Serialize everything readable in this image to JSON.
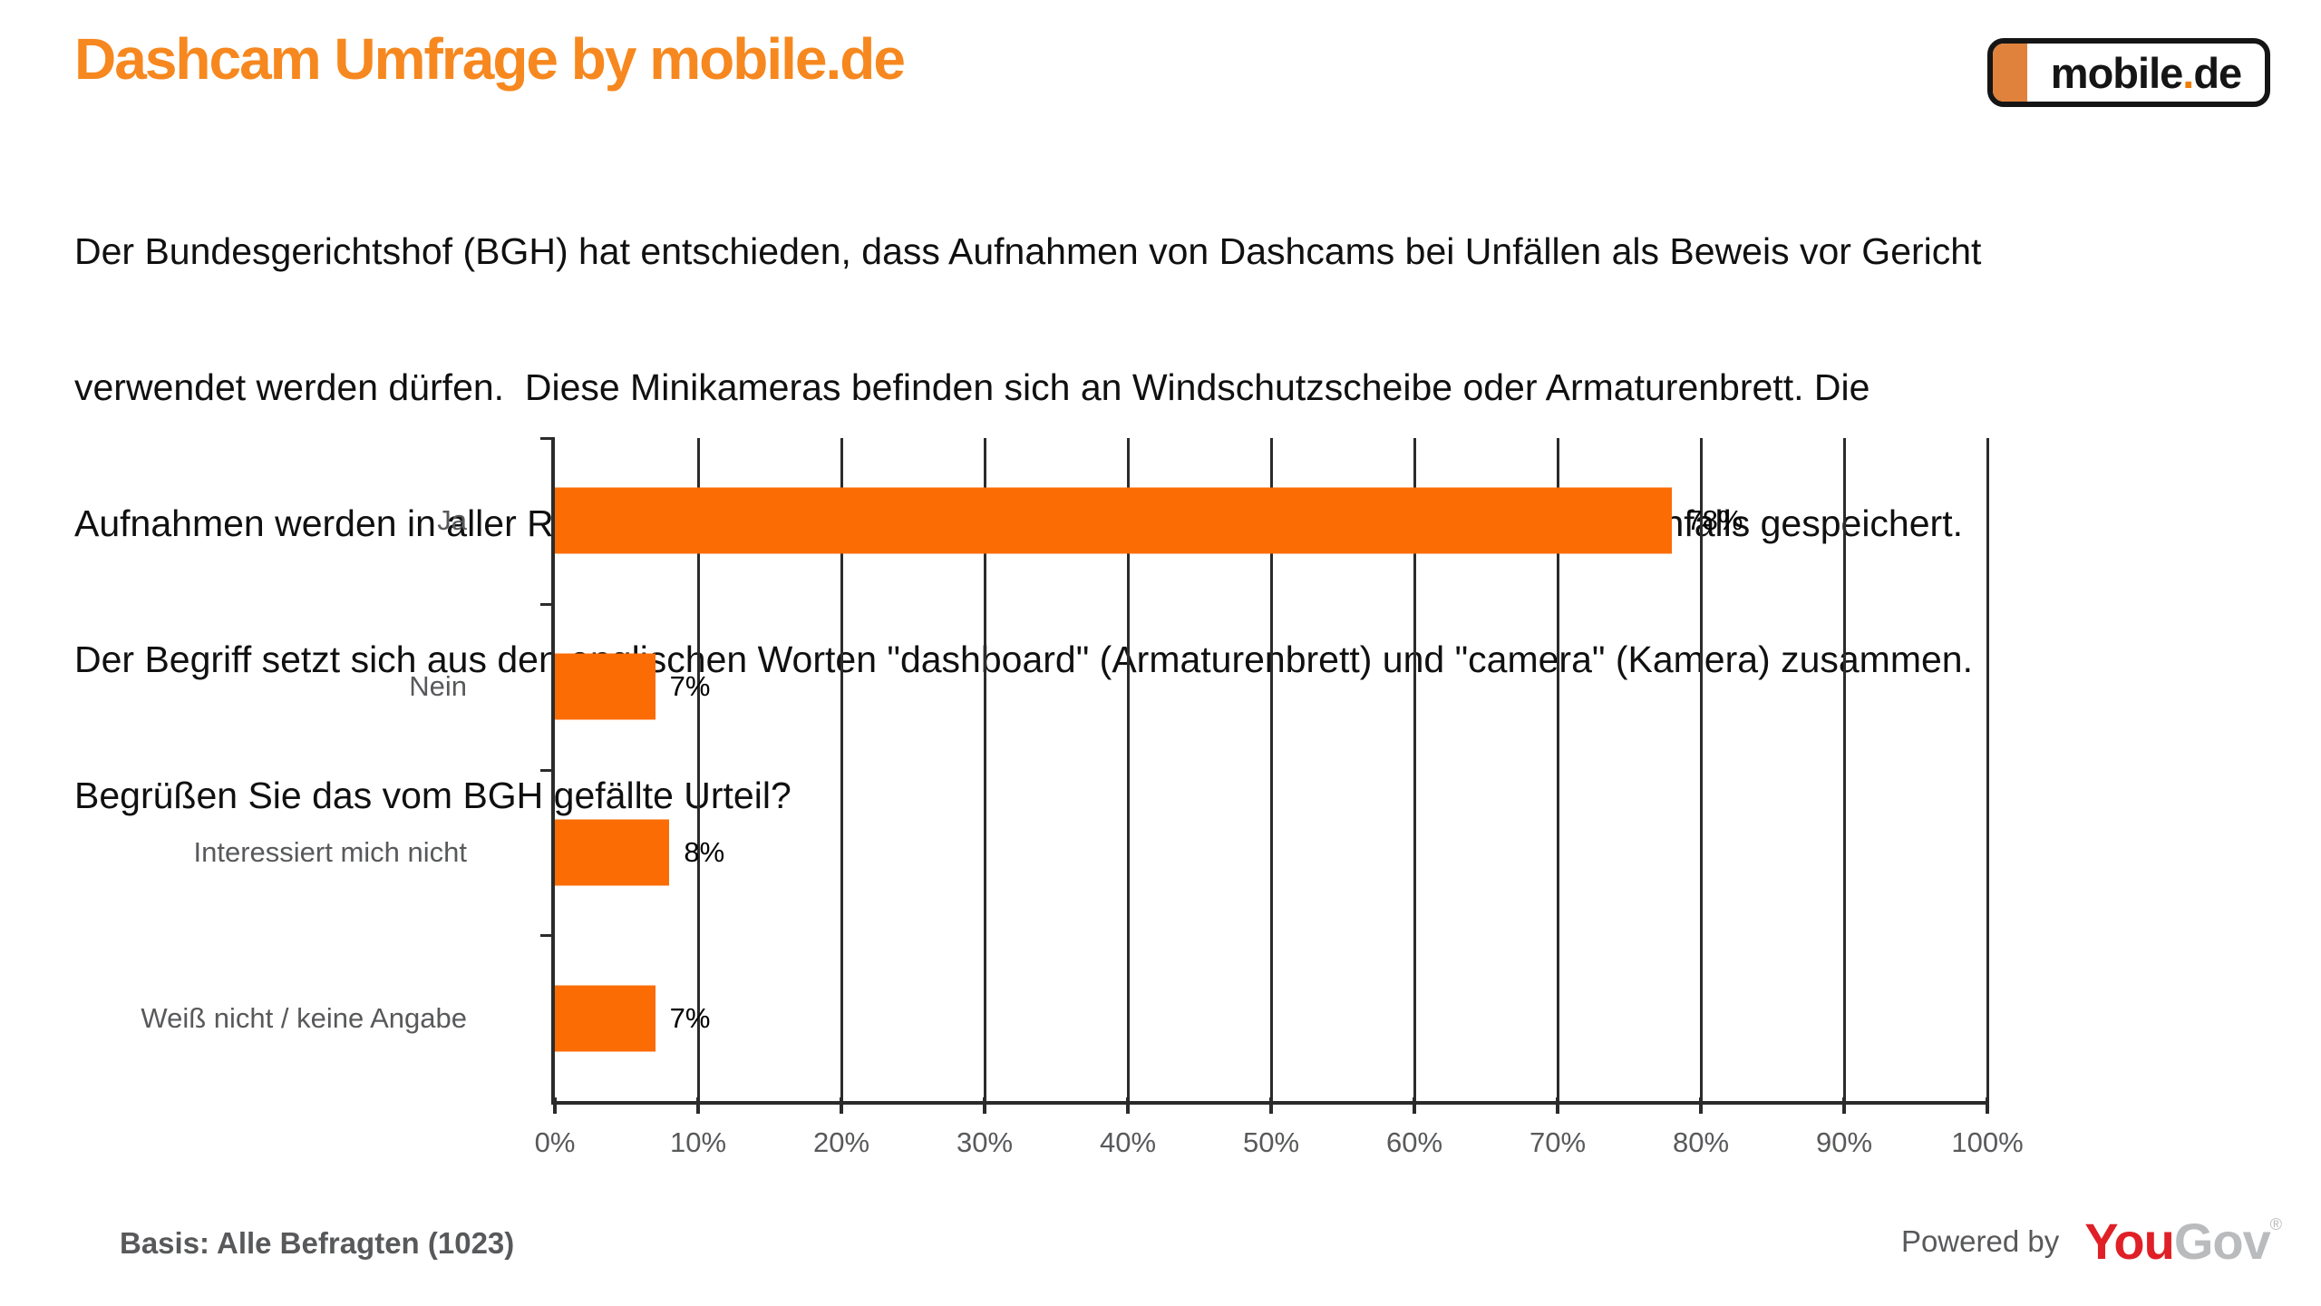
{
  "header": {
    "title": "Dashcam Umfrage by mobile.de",
    "title_color": "#F6881F",
    "logo": {
      "text": "mobile",
      "dot": ".",
      "suffix": "de",
      "accent_color": "#E0823C",
      "dot_color": "#EE7D00",
      "border_color": "#151515"
    }
  },
  "intro": {
    "lines": [
      "Der Bundesgerichtshof (BGH) hat entschieden, dass Aufnahmen von Dashcams bei Unfällen als Beweis vor Gericht",
      "verwendet werden dürfen.  Diese Minikameras befinden sich an Windschutzscheibe oder Armaturenbrett. Die",
      "Aufnahmen werden in aller Regel nach kurzer Zeit wieder gelöscht und lediglich im Falle eines Unfalls gespeichert.",
      "Der Begriff setzt sich aus den englischen Worten \"dashboard\" (Armaturenbrett) und \"camera\" (Kamera) zusammen.",
      "Begrüßen Sie das vom BGH gefällte Urteil?"
    ]
  },
  "chart_data": {
    "type": "bar",
    "orientation": "horizontal",
    "title": "",
    "xlabel": "",
    "ylabel": "",
    "categories": [
      "Ja",
      "Nein",
      "Interessiert mich nicht",
      "Weiß nicht / keine Angabe"
    ],
    "values": [
      78,
      7,
      8,
      7
    ],
    "value_labels": [
      "78%",
      "7%",
      "8%",
      "7%"
    ],
    "xlim": [
      0,
      100
    ],
    "x_tick_labels": [
      "0%",
      "10%",
      "20%",
      "30%",
      "40%",
      "50%",
      "60%",
      "70%",
      "80%",
      "90%",
      "100%"
    ],
    "grid": true,
    "grid_style": "vertical gridlines every 10%",
    "legend": false,
    "bar_color": "#FB6C04",
    "axis_color": "#2B2B2B",
    "category_label_color": "#58595B",
    "tick_label_color": "#58595B",
    "value_label_color": "#000000"
  },
  "footer": {
    "basis": "Basis: Alle Befragten (1023)",
    "powered_by": "Powered by",
    "brand": {
      "you": "You",
      "gov": "Gov",
      "registered": "®",
      "you_color": "#E01F26",
      "gov_color": "#B9BBBD"
    }
  }
}
